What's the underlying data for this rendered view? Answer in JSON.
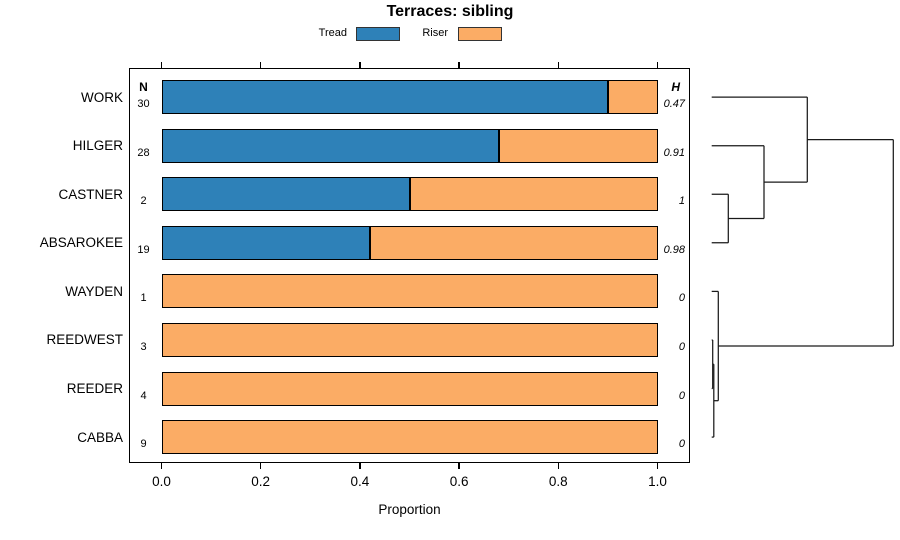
{
  "title": "Terraces: sibling",
  "legend": {
    "items": [
      {
        "label": "Tread",
        "color": "#2E81B8"
      },
      {
        "label": "Riser",
        "color": "#FBAC65"
      }
    ]
  },
  "columns": {
    "n_header": "N",
    "h_header": "H"
  },
  "chart_data": {
    "type": "bar",
    "orientation": "horizontal",
    "stacked": true,
    "title": "Terraces: sibling",
    "xlabel": "Proportion",
    "xlim": [
      0,
      1
    ],
    "x_ticks": [
      "0.0",
      "0.2",
      "0.4",
      "0.6",
      "0.8",
      "1.0"
    ],
    "legend_position": "top",
    "grid": false,
    "categories": [
      "WORK",
      "HILGER",
      "CASTNER",
      "ABSAROKEE",
      "WAYDEN",
      "REEDWEST",
      "REEDER",
      "CABBA"
    ],
    "series": [
      {
        "name": "Tread",
        "color": "#2E81B8",
        "values": [
          0.9,
          0.68,
          0.5,
          0.42,
          0,
          0,
          0,
          0
        ]
      },
      {
        "name": "Riser",
        "color": "#FBAC65",
        "values": [
          0.1,
          0.32,
          0.5,
          0.58,
          1,
          1,
          1,
          1
        ]
      }
    ],
    "rows": [
      {
        "label": "WORK",
        "n": "30",
        "h": "0.47",
        "tread": 0.9,
        "riser": 0.1
      },
      {
        "label": "HILGER",
        "n": "28",
        "h": "0.91",
        "tread": 0.68,
        "riser": 0.32
      },
      {
        "label": "CASTNER",
        "n": "2",
        "h": "1",
        "tread": 0.5,
        "riser": 0.5
      },
      {
        "label": "ABSAROKEE",
        "n": "19",
        "h": "0.98",
        "tread": 0.42,
        "riser": 0.58
      },
      {
        "label": "WAYDEN",
        "n": "1",
        "h": "0",
        "tread": 0,
        "riser": 1
      },
      {
        "label": "REEDWEST",
        "n": "3",
        "h": "0",
        "tread": 0,
        "riser": 1
      },
      {
        "label": "REEDER",
        "n": "4",
        "h": "0",
        "tread": 0,
        "riser": 1
      },
      {
        "label": "CABBA",
        "n": "9",
        "h": "0",
        "tread": 0,
        "riser": 1
      }
    ],
    "dendrogram": {
      "line_color": "#1a1a1a",
      "segments": [
        [
          711.7,
          97.1,
          807.3,
          97.1
        ],
        [
          711.7,
          145.7,
          764.0,
          145.7
        ],
        [
          711.7,
          194.2,
          728.3,
          194.2
        ],
        [
          711.7,
          242.8,
          728.3,
          242.8
        ],
        [
          728.3,
          194.2,
          728.3,
          242.8
        ],
        [
          728.3,
          218.5,
          764.0,
          218.5
        ],
        [
          764.0,
          145.7,
          764.0,
          218.5
        ],
        [
          764.0,
          182.1,
          807.3,
          182.1
        ],
        [
          807.3,
          97.1,
          807.3,
          182.1
        ],
        [
          807.3,
          139.6,
          893.3,
          139.6
        ],
        [
          711.7,
          291.4,
          718.3,
          291.4
        ],
        [
          711.7,
          340.0,
          712.7,
          340.0
        ],
        [
          711.7,
          388.5,
          712.7,
          388.5
        ],
        [
          711.7,
          437.1,
          713.8,
          437.1
        ],
        [
          712.7,
          340.0,
          712.7,
          388.5
        ],
        [
          712.7,
          364.2,
          713.8,
          364.2
        ],
        [
          713.8,
          364.2,
          713.8,
          437.1
        ],
        [
          713.8,
          400.7,
          718.3,
          400.7
        ],
        [
          718.3,
          291.4,
          718.3,
          400.7
        ],
        [
          718.3,
          346.0,
          893.3,
          346.0
        ],
        [
          893.3,
          139.6,
          893.3,
          346.0
        ]
      ]
    }
  }
}
